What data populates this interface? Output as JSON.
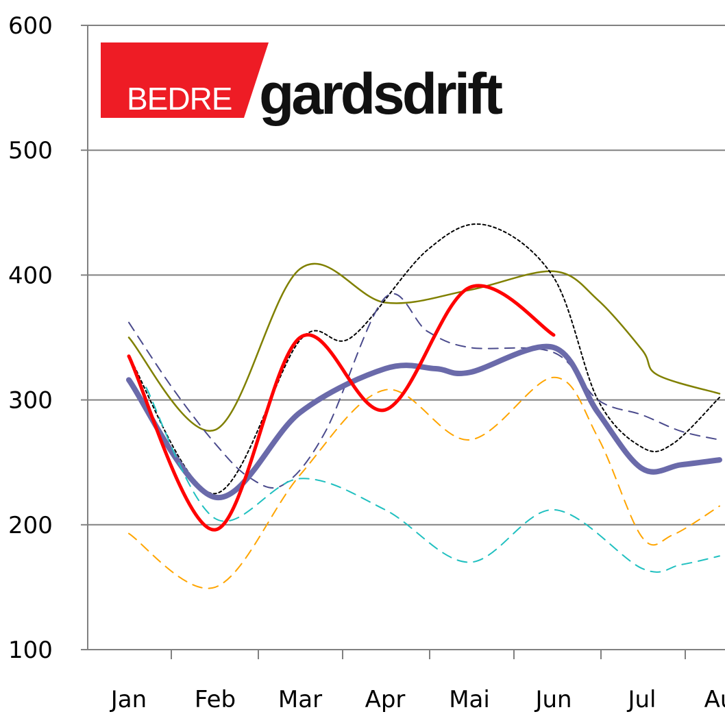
{
  "logo": {
    "part1": "BEDRE",
    "part2": "gardsdrift",
    "accent": "#ee1c25"
  },
  "chart_data": {
    "type": "line",
    "categories": [
      "Jan",
      "Feb",
      "Mar",
      "Apr",
      "Mai",
      "Jun",
      "Jul",
      "Au"
    ],
    "ylim": [
      100,
      600
    ],
    "yticks": [
      100,
      200,
      300,
      400,
      500,
      600
    ],
    "grid": true,
    "series": [
      {
        "color": "#808000",
        "style": "thin",
        "points": [
          [
            0.0,
            350
          ],
          [
            1.0,
            276
          ],
          [
            2.0,
            405
          ],
          [
            3.0,
            378
          ],
          [
            4.0,
            388
          ],
          [
            5.0,
            403
          ],
          [
            5.5,
            380
          ],
          [
            6.0,
            340
          ],
          [
            6.2,
            320
          ],
          [
            7.0,
            305
          ]
        ]
      },
      {
        "color": "#000000",
        "style": "dotted",
        "points": [
          [
            0.0,
            335
          ],
          [
            1.0,
            225
          ],
          [
            2.0,
            348
          ],
          [
            2.6,
            350
          ],
          [
            3.5,
            420
          ],
          [
            4.2,
            440
          ],
          [
            5.0,
            398
          ],
          [
            5.5,
            300
          ],
          [
            6.0,
            262
          ],
          [
            6.4,
            265
          ],
          [
            7.0,
            302
          ]
        ]
      },
      {
        "color": "#4a4a8c",
        "style": "dashed",
        "points": [
          [
            0.0,
            362
          ],
          [
            0.5,
            310
          ],
          [
            1.0,
            265
          ],
          [
            1.4,
            238
          ],
          [
            1.8,
            232
          ],
          [
            2.3,
            275
          ],
          [
            3.0,
            382
          ],
          [
            3.5,
            355
          ],
          [
            4.0,
            342
          ],
          [
            5.0,
            338
          ],
          [
            5.5,
            300
          ],
          [
            6.0,
            288
          ],
          [
            6.5,
            275
          ],
          [
            7.0,
            268
          ]
        ]
      },
      {
        "color": "#6a6aaa",
        "style": "thick",
        "points": [
          [
            0.0,
            316
          ],
          [
            1.0,
            222
          ],
          [
            2.0,
            290
          ],
          [
            3.0,
            325
          ],
          [
            3.6,
            325
          ],
          [
            4.0,
            322
          ],
          [
            5.0,
            342
          ],
          [
            5.5,
            290
          ],
          [
            6.0,
            245
          ],
          [
            6.5,
            248
          ],
          [
            7.0,
            252
          ]
        ]
      },
      {
        "color": "#ffa500",
        "style": "dashed",
        "points": [
          [
            0.0,
            193
          ],
          [
            1.0,
            150
          ],
          [
            2.0,
            240
          ],
          [
            3.0,
            308
          ],
          [
            4.0,
            268
          ],
          [
            5.0,
            318
          ],
          [
            5.5,
            270
          ],
          [
            6.0,
            190
          ],
          [
            6.4,
            192
          ],
          [
            7.0,
            215
          ]
        ]
      },
      {
        "color": "#20c0c0",
        "style": "dashed",
        "points": [
          [
            0.2,
            310
          ],
          [
            1.0,
            205
          ],
          [
            2.0,
            237
          ],
          [
            3.0,
            212
          ],
          [
            4.0,
            170
          ],
          [
            5.0,
            212
          ],
          [
            6.0,
            165
          ],
          [
            6.5,
            168
          ],
          [
            7.0,
            175
          ]
        ]
      },
      {
        "color": "#ff0000",
        "style": "bold",
        "points": [
          [
            0.0,
            335
          ],
          [
            1.0,
            196
          ],
          [
            2.0,
            350
          ],
          [
            3.0,
            292
          ],
          [
            4.0,
            390
          ],
          [
            5.0,
            352
          ]
        ]
      }
    ]
  }
}
